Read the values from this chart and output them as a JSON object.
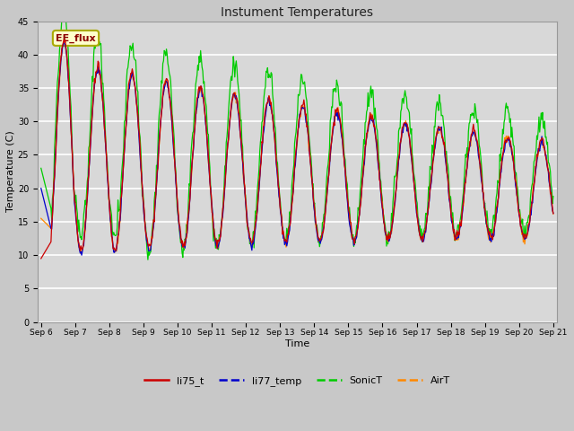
{
  "title": "Instument Temperatures",
  "xlabel": "Time",
  "ylabel": "Temperature (C)",
  "ylim": [
    0,
    45
  ],
  "yticks": [
    0,
    5,
    10,
    15,
    20,
    25,
    30,
    35,
    40,
    45
  ],
  "colors": {
    "li75_t": "#cc0000",
    "li77_temp": "#0000cc",
    "SonicT": "#00cc00",
    "AirT": "#ff8800"
  },
  "annotation_text": "EE_flux",
  "annotation_color": "#8b0000",
  "annotation_bg": "#ffffcc",
  "fig_bg": "#c8c8c8",
  "plot_bg": "#d8d8d8",
  "grid_color": "#ffffff",
  "n_points": 720,
  "figsize": [
    6.4,
    4.8
  ],
  "dpi": 100
}
